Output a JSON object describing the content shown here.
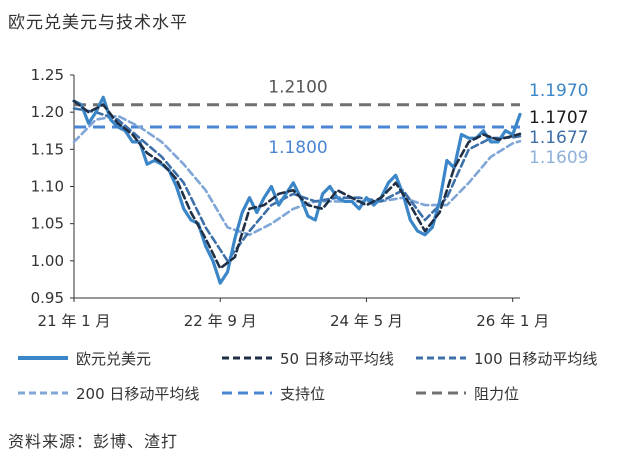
{
  "title": "欧元兑美元与技术水平",
  "source": "资料来源：彭博、渣打",
  "colors": {
    "eurusd": "#3a86c8",
    "ma50": "#1f2f45",
    "ma100": "#3d6fa8",
    "ma200": "#7fa6d6",
    "support": "#4a86d4",
    "resistance": "#707070"
  },
  "chart_data": {
    "type": "line",
    "title": "欧元兑美元与技术水平",
    "xlabel": "",
    "ylabel": "",
    "x_ticks": [
      "21 年 1 月",
      "22 年 9 月",
      "24 年 5 月",
      "26 年 1 月"
    ],
    "x_tick_dates": [
      "2021-01",
      "2022-09",
      "2024-05",
      "2026-01"
    ],
    "y_ticks": [
      "0.95",
      "1.00",
      "1.05",
      "1.10",
      "1.15",
      "1.20",
      "1.25"
    ],
    "ylim": [
      0.95,
      1.25
    ],
    "xlim": [
      "2021-01",
      "2026-02"
    ],
    "grid": false,
    "legend_position": "bottom",
    "series": [
      {
        "name": "欧元兑美元",
        "key": "eurusd",
        "end_label": "1.1970",
        "points": [
          [
            "2021-01",
            1.215
          ],
          [
            "2021-02",
            1.21
          ],
          [
            "2021-03",
            1.185
          ],
          [
            "2021-04",
            1.2
          ],
          [
            "2021-05",
            1.22
          ],
          [
            "2021-06",
            1.19
          ],
          [
            "2021-07",
            1.18
          ],
          [
            "2021-08",
            1.175
          ],
          [
            "2021-09",
            1.16
          ],
          [
            "2021-10",
            1.16
          ],
          [
            "2021-11",
            1.13
          ],
          [
            "2021-12",
            1.135
          ],
          [
            "2022-01",
            1.13
          ],
          [
            "2022-02",
            1.122
          ],
          [
            "2022-03",
            1.1
          ],
          [
            "2022-04",
            1.07
          ],
          [
            "2022-05",
            1.055
          ],
          [
            "2022-06",
            1.05
          ],
          [
            "2022-07",
            1.02
          ],
          [
            "2022-08",
            1.0
          ],
          [
            "2022-09",
            0.97
          ],
          [
            "2022-10",
            0.985
          ],
          [
            "2022-11",
            1.03
          ],
          [
            "2022-12",
            1.065
          ],
          [
            "2023-01",
            1.085
          ],
          [
            "2023-02",
            1.065
          ],
          [
            "2023-03",
            1.085
          ],
          [
            "2023-04",
            1.1
          ],
          [
            "2023-05",
            1.075
          ],
          [
            "2023-06",
            1.09
          ],
          [
            "2023-07",
            1.105
          ],
          [
            "2023-08",
            1.085
          ],
          [
            "2023-09",
            1.06
          ],
          [
            "2023-10",
            1.055
          ],
          [
            "2023-11",
            1.09
          ],
          [
            "2023-12",
            1.1
          ],
          [
            "2024-01",
            1.085
          ],
          [
            "2024-02",
            1.08
          ],
          [
            "2024-03",
            1.08
          ],
          [
            "2024-04",
            1.07
          ],
          [
            "2024-05",
            1.085
          ],
          [
            "2024-06",
            1.075
          ],
          [
            "2024-07",
            1.085
          ],
          [
            "2024-08",
            1.105
          ],
          [
            "2024-09",
            1.115
          ],
          [
            "2024-10",
            1.09
          ],
          [
            "2024-11",
            1.055
          ],
          [
            "2024-12",
            1.04
          ],
          [
            "2025-01",
            1.035
          ],
          [
            "2025-02",
            1.045
          ],
          [
            "2025-03",
            1.08
          ],
          [
            "2025-04",
            1.135
          ],
          [
            "2025-05",
            1.125
          ],
          [
            "2025-06",
            1.17
          ],
          [
            "2025-07",
            1.165
          ],
          [
            "2025-08",
            1.165
          ],
          [
            "2025-09",
            1.175
          ],
          [
            "2025-10",
            1.16
          ],
          [
            "2025-11",
            1.16
          ],
          [
            "2025-12",
            1.175
          ],
          [
            "2026-01",
            1.17
          ],
          [
            "2026-02",
            1.197
          ]
        ]
      },
      {
        "name": "50 日移动平均线",
        "key": "ma50",
        "end_label": "1.1707",
        "points": [
          [
            "2021-01",
            1.215
          ],
          [
            "2021-03",
            1.2
          ],
          [
            "2021-05",
            1.21
          ],
          [
            "2021-07",
            1.185
          ],
          [
            "2021-09",
            1.17
          ],
          [
            "2021-11",
            1.145
          ],
          [
            "2022-01",
            1.132
          ],
          [
            "2022-03",
            1.11
          ],
          [
            "2022-05",
            1.065
          ],
          [
            "2022-07",
            1.03
          ],
          [
            "2022-09",
            0.99
          ],
          [
            "2022-11",
            1.005
          ],
          [
            "2023-01",
            1.07
          ],
          [
            "2023-03",
            1.075
          ],
          [
            "2023-05",
            1.09
          ],
          [
            "2023-07",
            1.095
          ],
          [
            "2023-09",
            1.075
          ],
          [
            "2023-11",
            1.07
          ],
          [
            "2024-01",
            1.095
          ],
          [
            "2024-03",
            1.085
          ],
          [
            "2024-05",
            1.075
          ],
          [
            "2024-07",
            1.085
          ],
          [
            "2024-09",
            1.105
          ],
          [
            "2024-11",
            1.075
          ],
          [
            "2025-01",
            1.04
          ],
          [
            "2025-03",
            1.065
          ],
          [
            "2025-05",
            1.125
          ],
          [
            "2025-07",
            1.16
          ],
          [
            "2025-09",
            1.17
          ],
          [
            "2025-11",
            1.163
          ],
          [
            "2026-01",
            1.168
          ],
          [
            "2026-02",
            1.1707
          ]
        ]
      },
      {
        "name": "100 日移动平均线",
        "key": "ma100",
        "end_label": "1.1677",
        "points": [
          [
            "2021-01",
            1.205
          ],
          [
            "2021-04",
            1.2
          ],
          [
            "2021-07",
            1.19
          ],
          [
            "2021-10",
            1.165
          ],
          [
            "2022-01",
            1.14
          ],
          [
            "2022-04",
            1.105
          ],
          [
            "2022-07",
            1.045
          ],
          [
            "2022-10",
            1.0
          ],
          [
            "2023-01",
            1.04
          ],
          [
            "2023-04",
            1.075
          ],
          [
            "2023-07",
            1.09
          ],
          [
            "2023-10",
            1.08
          ],
          [
            "2024-01",
            1.085
          ],
          [
            "2024-04",
            1.085
          ],
          [
            "2024-07",
            1.08
          ],
          [
            "2024-10",
            1.095
          ],
          [
            "2025-01",
            1.055
          ],
          [
            "2025-04",
            1.085
          ],
          [
            "2025-07",
            1.15
          ],
          [
            "2025-10",
            1.165
          ],
          [
            "2026-01",
            1.166
          ],
          [
            "2026-02",
            1.1677
          ]
        ]
      },
      {
        "name": "200 日移动平均线",
        "key": "ma200",
        "end_label": "1.1609",
        "points": [
          [
            "2021-01",
            1.16
          ],
          [
            "2021-04",
            1.19
          ],
          [
            "2021-07",
            1.195
          ],
          [
            "2021-10",
            1.18
          ],
          [
            "2022-01",
            1.16
          ],
          [
            "2022-04",
            1.13
          ],
          [
            "2022-07",
            1.095
          ],
          [
            "2022-10",
            1.045
          ],
          [
            "2023-01",
            1.035
          ],
          [
            "2023-04",
            1.05
          ],
          [
            "2023-07",
            1.07
          ],
          [
            "2023-10",
            1.08
          ],
          [
            "2024-01",
            1.08
          ],
          [
            "2024-04",
            1.08
          ],
          [
            "2024-07",
            1.08
          ],
          [
            "2024-10",
            1.085
          ],
          [
            "2025-01",
            1.075
          ],
          [
            "2025-04",
            1.075
          ],
          [
            "2025-07",
            1.105
          ],
          [
            "2025-10",
            1.14
          ],
          [
            "2026-01",
            1.158
          ],
          [
            "2026-02",
            1.1609
          ]
        ]
      }
    ],
    "reference_lines": [
      {
        "name": "支持位",
        "key": "support",
        "value": 1.18,
        "label": "1.1800"
      },
      {
        "name": "阻力位",
        "key": "resistance",
        "value": 1.21,
        "label": "1.2100"
      }
    ]
  }
}
